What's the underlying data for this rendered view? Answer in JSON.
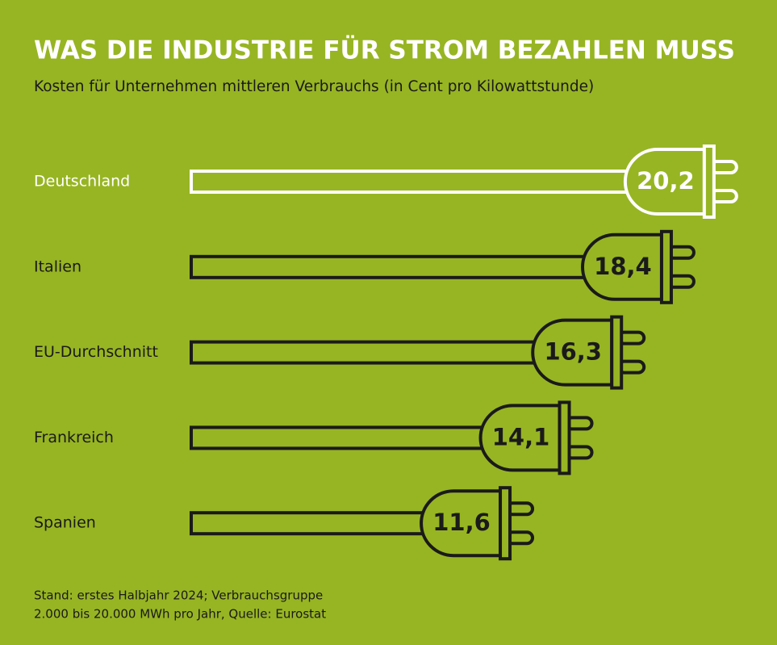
{
  "chart_data": {
    "type": "plugbar",
    "title": "WAS DIE INDUSTRIE FÜR STROM BEZAHLEN MUSS",
    "subtitle": "Kosten für Unternehmen mittleren Verbrauchs (in Cent pro Kilowattstunde)",
    "categories": [
      "Deutschland",
      "Italien",
      "EU-Durchschnitt",
      "Frankreich",
      "Spanien"
    ],
    "values": [
      20.2,
      18.4,
      16.3,
      14.1,
      11.6
    ],
    "value_labels": [
      "20,2",
      "18,4",
      "16,3",
      "14,1",
      "11,6"
    ],
    "colors": [
      "#ffffff",
      "#1a1a1a",
      "#1a1a1a",
      "#1a1a1a",
      "#1a1a1a"
    ],
    "background": "#97b523",
    "note": [
      "Stand: erstes Halbjahr 2024; Verbrauchsgruppe",
      "2.000 bis 20.000 MWh pro Jahr, Quelle: Eurostat"
    ]
  }
}
